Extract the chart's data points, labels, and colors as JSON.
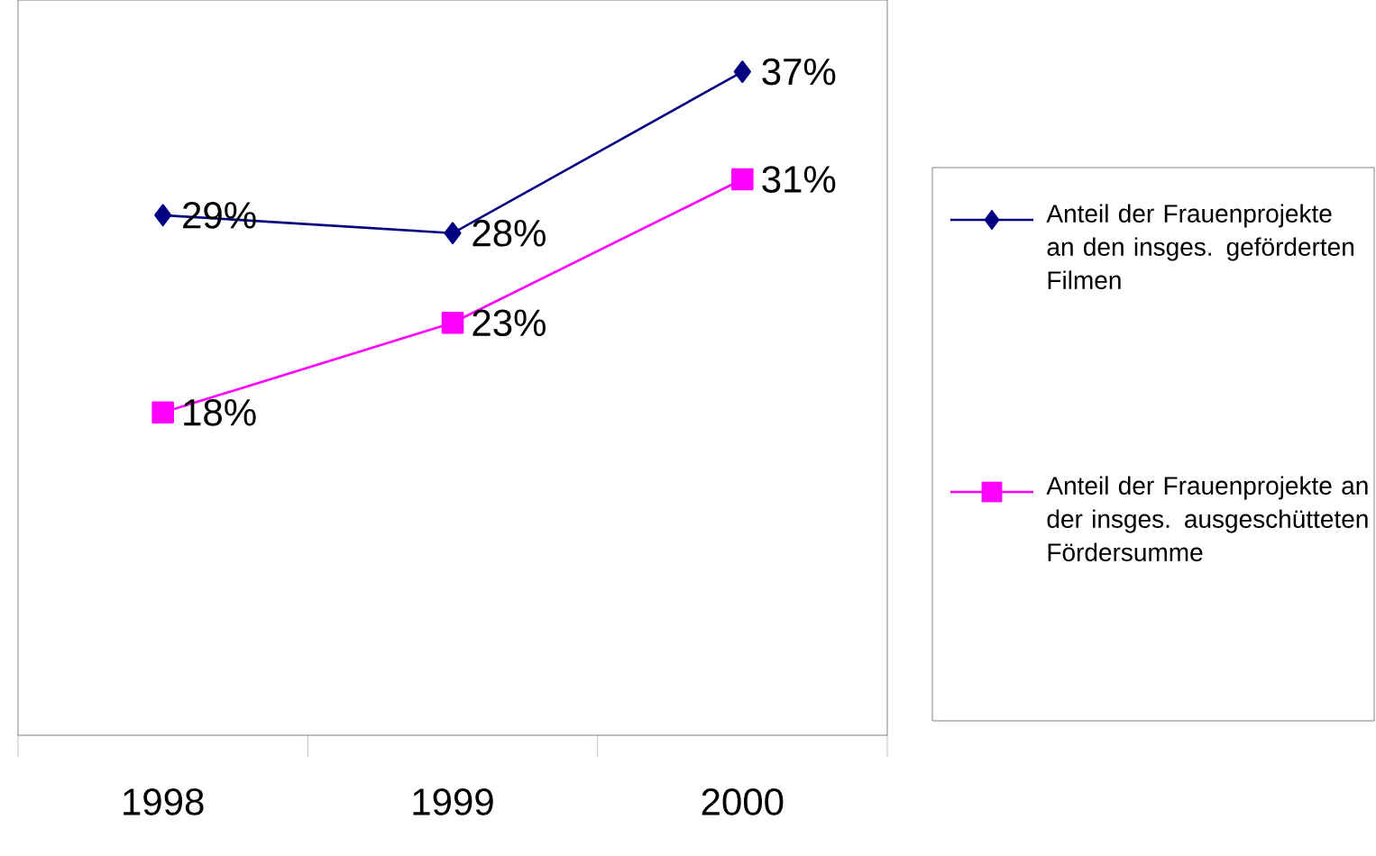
{
  "chart_data": {
    "type": "line",
    "categories": [
      "1998",
      "1999",
      "2000"
    ],
    "ylim": [
      0,
      41
    ],
    "legend": "right",
    "series": [
      {
        "name": "Anteil der Frauenprojekte an den insges. geförderten Filmen",
        "color": "#000080",
        "marker": "diamond",
        "values": [
          29,
          28,
          37
        ],
        "value_labels": [
          "29%",
          "28%",
          "37%"
        ]
      },
      {
        "name": "Anteil der Frauenprojekte an der insges. ausgeschütteten Fördersumme",
        "color": "#ff00ff",
        "marker": "square",
        "values": [
          18,
          23,
          31
        ],
        "value_labels": [
          "18%",
          "23%",
          "31%"
        ]
      }
    ]
  }
}
